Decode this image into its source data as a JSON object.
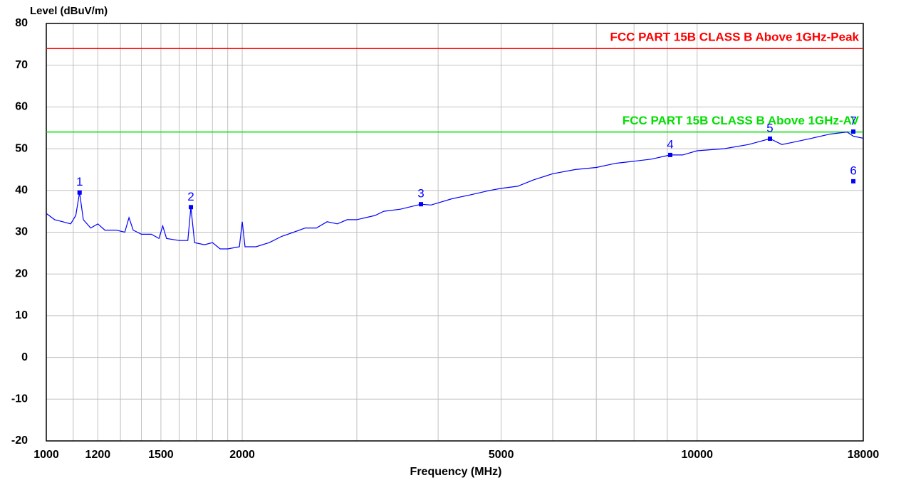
{
  "chart_data": {
    "type": "line",
    "ylabel": "Level (dBuV/m)",
    "xlabel": "Frequency (MHz)",
    "xscale": "log",
    "xlim": [
      1000,
      18000
    ],
    "ylim": [
      -20,
      80
    ],
    "xticks": [
      1000,
      1200,
      1500,
      2000,
      5000,
      10000,
      18000
    ],
    "xgrid": [
      1100,
      1300,
      1400,
      1600,
      1700,
      1800,
      1900,
      3000,
      4000,
      6000,
      7000,
      8000,
      9000
    ],
    "yticks": [
      -20,
      -10,
      0,
      10,
      20,
      30,
      40,
      50,
      60,
      70,
      80
    ],
    "grid": true,
    "limits": [
      {
        "name": "FCC PART 15B CLASS B Above 1GHz-Peak",
        "value": 74,
        "color": "#ff0000"
      },
      {
        "name": "FCC PART 15B CLASS B Above 1GHz-AV",
        "value": 54,
        "color": "#00e000"
      }
    ],
    "series": [
      {
        "color": "#0000ff",
        "x": [
          1000,
          1030,
          1060,
          1090,
          1110,
          1125,
          1140,
          1170,
          1200,
          1230,
          1280,
          1320,
          1340,
          1360,
          1400,
          1450,
          1490,
          1510,
          1530,
          1600,
          1650,
          1668,
          1690,
          1750,
          1800,
          1850,
          1900,
          1980,
          2000,
          2020,
          2100,
          2200,
          2300,
          2400,
          2500,
          2600,
          2700,
          2800,
          2900,
          3000,
          3200,
          3300,
          3500,
          3764,
          3900,
          4200,
          4500,
          4800,
          5000,
          5300,
          5600,
          6000,
          6500,
          7000,
          7500,
          8000,
          8500,
          9093,
          9500,
          10000,
          11000,
          12000,
          12940,
          13500,
          14000,
          15000,
          16000,
          17000,
          17380,
          18000
        ],
        "values": [
          34.5,
          33,
          32.5,
          32,
          34,
          39.5,
          33,
          31,
          32,
          30.5,
          30.5,
          30,
          33.5,
          30.5,
          29.5,
          29.5,
          28.5,
          31.5,
          28.5,
          28,
          28,
          36,
          27.5,
          27,
          27.5,
          26,
          26,
          26.5,
          32.5,
          26.5,
          26.5,
          27.5,
          29,
          30,
          31,
          31,
          32.5,
          32,
          33,
          33,
          34,
          35,
          35.5,
          36.7,
          36.5,
          38,
          39,
          40,
          40.5,
          41,
          42.5,
          44,
          45,
          45.5,
          46.5,
          47,
          47.5,
          48.5,
          48.5,
          49.5,
          50,
          51,
          52.4,
          51,
          51.5,
          52.5,
          53.5,
          54,
          53,
          52.5
        ]
      }
    ],
    "markers": [
      {
        "label": "1",
        "x": 1125,
        "value": 39.5
      },
      {
        "label": "2",
        "x": 1668,
        "value": 36
      },
      {
        "label": "3",
        "x": 3764,
        "value": 36.7
      },
      {
        "label": "4",
        "x": 9093,
        "value": 48.5
      },
      {
        "label": "5",
        "x": 12940,
        "value": 52.4
      },
      {
        "label": "6",
        "x": 17380,
        "value": 42.2
      },
      {
        "label": "7",
        "x": 17380,
        "value": 54.1
      }
    ]
  }
}
